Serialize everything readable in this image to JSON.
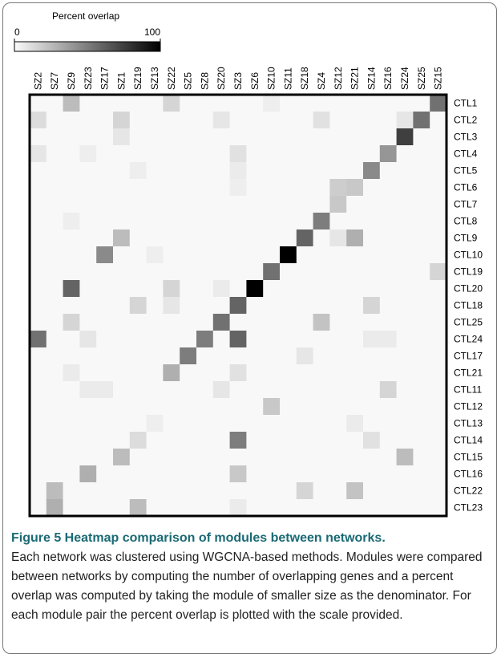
{
  "chart_data": {
    "type": "heatmap",
    "colorbar_title": "Percent overlap",
    "zlim": [
      0,
      100
    ],
    "zticks": [
      0,
      100
    ],
    "x": [
      "SZ2",
      "SZ7",
      "SZ9",
      "SZ23",
      "SZ17",
      "SZ1",
      "SZ19",
      "SZ13",
      "SZ22",
      "SZ5",
      "SZ8",
      "SZ20",
      "SZ3",
      "SZ6",
      "SZ10",
      "SZ11",
      "SZ18",
      "SZ4",
      "SZ12",
      "SZ21",
      "SZ14",
      "SZ16",
      "SZ24",
      "SZ25",
      "SZ15"
    ],
    "y": [
      "CTL1",
      "CTL2",
      "CTL3",
      "CTL4",
      "CTL5",
      "CTL6",
      "CTL7",
      "CTL8",
      "CTL9",
      "CTL10",
      "CTL19",
      "CTL20",
      "CTL18",
      "CTL25",
      "CTL24",
      "CTL17",
      "CTL21",
      "CTL11",
      "CTL12",
      "CTL13",
      "CTL14",
      "CTL15",
      "CTL16",
      "CTL22",
      "CTL23"
    ],
    "values": [
      [
        1,
        1,
        25,
        1,
        1,
        1,
        1,
        1,
        15,
        1,
        1,
        1,
        1,
        1,
        5,
        1,
        1,
        1,
        1,
        1,
        1,
        1,
        1,
        1,
        55
      ],
      [
        12,
        1,
        1,
        1,
        1,
        15,
        1,
        1,
        1,
        1,
        1,
        8,
        1,
        1,
        1,
        1,
        1,
        10,
        1,
        1,
        1,
        1,
        8,
        55,
        1
      ],
      [
        1,
        1,
        1,
        1,
        1,
        8,
        1,
        1,
        1,
        1,
        1,
        1,
        1,
        1,
        1,
        1,
        1,
        1,
        1,
        1,
        1,
        1,
        75,
        1,
        1
      ],
      [
        8,
        1,
        1,
        5,
        1,
        1,
        1,
        1,
        1,
        1,
        1,
        1,
        10,
        1,
        1,
        1,
        1,
        1,
        1,
        1,
        1,
        40,
        1,
        1,
        1
      ],
      [
        1,
        1,
        1,
        1,
        1,
        1,
        5,
        1,
        1,
        1,
        1,
        1,
        6,
        1,
        1,
        1,
        1,
        1,
        1,
        1,
        45,
        1,
        1,
        1,
        1
      ],
      [
        1,
        1,
        1,
        1,
        1,
        1,
        1,
        1,
        1,
        1,
        1,
        1,
        5,
        1,
        1,
        1,
        1,
        1,
        18,
        20,
        1,
        1,
        1,
        1,
        1
      ],
      [
        1,
        1,
        1,
        1,
        1,
        1,
        1,
        1,
        1,
        1,
        1,
        1,
        1,
        1,
        1,
        1,
        1,
        1,
        20,
        1,
        1,
        1,
        1,
        1,
        1
      ],
      [
        1,
        1,
        5,
        1,
        1,
        1,
        1,
        1,
        1,
        1,
        1,
        1,
        1,
        1,
        1,
        1,
        1,
        50,
        1,
        1,
        1,
        1,
        1,
        1,
        1
      ],
      [
        1,
        1,
        1,
        1,
        1,
        25,
        1,
        1,
        1,
        1,
        1,
        1,
        1,
        1,
        1,
        1,
        60,
        1,
        8,
        30,
        1,
        1,
        1,
        1,
        1
      ],
      [
        1,
        1,
        1,
        1,
        45,
        1,
        1,
        5,
        1,
        1,
        1,
        1,
        1,
        1,
        1,
        100,
        1,
        1,
        1,
        1,
        1,
        1,
        1,
        1,
        1
      ],
      [
        1,
        1,
        1,
        1,
        1,
        1,
        1,
        1,
        1,
        1,
        1,
        1,
        1,
        1,
        55,
        1,
        1,
        1,
        1,
        1,
        1,
        1,
        1,
        1,
        15
      ],
      [
        1,
        1,
        60,
        1,
        1,
        1,
        1,
        1,
        15,
        1,
        1,
        6,
        1,
        100,
        1,
        1,
        1,
        1,
        1,
        1,
        1,
        1,
        1,
        1,
        1
      ],
      [
        1,
        1,
        1,
        1,
        1,
        1,
        15,
        1,
        8,
        1,
        1,
        1,
        60,
        1,
        1,
        1,
        1,
        1,
        1,
        1,
        15,
        1,
        1,
        1,
        1
      ],
      [
        1,
        1,
        15,
        1,
        1,
        1,
        1,
        1,
        1,
        1,
        1,
        55,
        1,
        1,
        1,
        1,
        1,
        22,
        1,
        1,
        1,
        1,
        1,
        1,
        1
      ],
      [
        55,
        1,
        1,
        8,
        1,
        1,
        1,
        1,
        1,
        1,
        50,
        1,
        60,
        1,
        1,
        1,
        1,
        1,
        1,
        1,
        6,
        6,
        1,
        1,
        1
      ],
      [
        1,
        1,
        1,
        1,
        1,
        1,
        1,
        1,
        1,
        50,
        1,
        1,
        1,
        1,
        1,
        1,
        8,
        1,
        1,
        1,
        1,
        1,
        1,
        1,
        1
      ],
      [
        1,
        1,
        6,
        1,
        1,
        1,
        1,
        1,
        30,
        1,
        1,
        1,
        10,
        1,
        1,
        1,
        1,
        1,
        1,
        1,
        1,
        1,
        1,
        1,
        1
      ],
      [
        1,
        1,
        1,
        6,
        6,
        1,
        1,
        1,
        1,
        1,
        1,
        8,
        1,
        1,
        1,
        1,
        1,
        1,
        1,
        1,
        1,
        15,
        1,
        1,
        1
      ],
      [
        1,
        1,
        1,
        1,
        1,
        1,
        1,
        1,
        1,
        1,
        1,
        1,
        1,
        1,
        20,
        1,
        1,
        1,
        1,
        1,
        1,
        1,
        1,
        1,
        1
      ],
      [
        1,
        1,
        1,
        1,
        1,
        1,
        1,
        5,
        1,
        1,
        1,
        1,
        1,
        1,
        1,
        1,
        1,
        1,
        1,
        6,
        1,
        1,
        1,
        1,
        1
      ],
      [
        1,
        1,
        1,
        1,
        1,
        1,
        12,
        1,
        1,
        1,
        1,
        1,
        50,
        1,
        1,
        1,
        1,
        1,
        1,
        1,
        10,
        1,
        1,
        1,
        1
      ],
      [
        1,
        1,
        1,
        1,
        1,
        25,
        1,
        1,
        1,
        1,
        1,
        1,
        1,
        1,
        1,
        1,
        1,
        1,
        1,
        1,
        1,
        1,
        25,
        1,
        1
      ],
      [
        1,
        1,
        1,
        30,
        1,
        1,
        1,
        1,
        1,
        1,
        1,
        1,
        20,
        1,
        1,
        1,
        1,
        1,
        1,
        1,
        1,
        1,
        1,
        1,
        1
      ],
      [
        1,
        25,
        1,
        1,
        1,
        1,
        1,
        1,
        1,
        1,
        1,
        1,
        1,
        1,
        1,
        1,
        15,
        1,
        1,
        22,
        1,
        1,
        1,
        1,
        1
      ],
      [
        1,
        30,
        1,
        1,
        1,
        1,
        25,
        1,
        1,
        1,
        1,
        1,
        6,
        1,
        1,
        1,
        1,
        1,
        1,
        1,
        1,
        1,
        1,
        1,
        1
      ]
    ]
  },
  "caption": {
    "label": "Figure 5 Heatmap comparison of modules between networks.",
    "text": "Each network was clustered using WGCNA-based methods. Modules were compared between networks by computing the number of overlapping genes and a percent overlap was computed by taking the module of smaller size as the denominator. For each module pair the percent overlap is plotted with the scale provided."
  }
}
